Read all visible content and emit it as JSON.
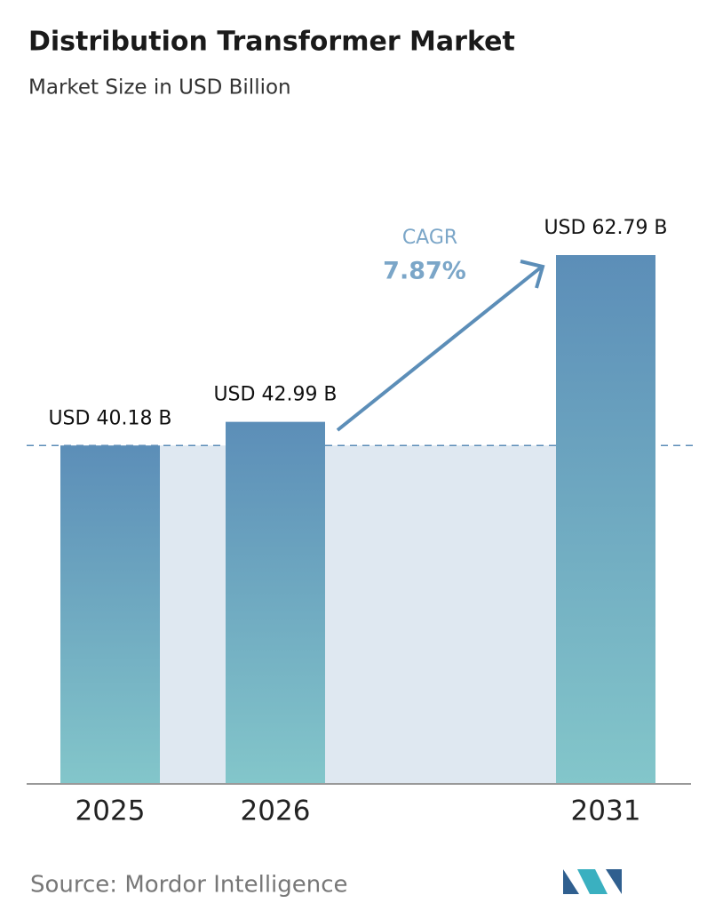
{
  "chart_data": {
    "type": "bar",
    "title": "Distribution Transformer Market",
    "subtitle": "Market Size in USD Billion",
    "categories": [
      "2025",
      "2026",
      "2031"
    ],
    "values": [
      40.18,
      42.99,
      62.79
    ],
    "value_labels": [
      "USD 40.18 B",
      "USD 42.99 B",
      "USD 62.79 B"
    ],
    "gradient": [
      "#5c8eb8",
      "#83c6ca"
    ],
    "cagr_label": "CAGR",
    "cagr": "7.87%",
    "source": "Source: Mordor Intelligence"
  }
}
